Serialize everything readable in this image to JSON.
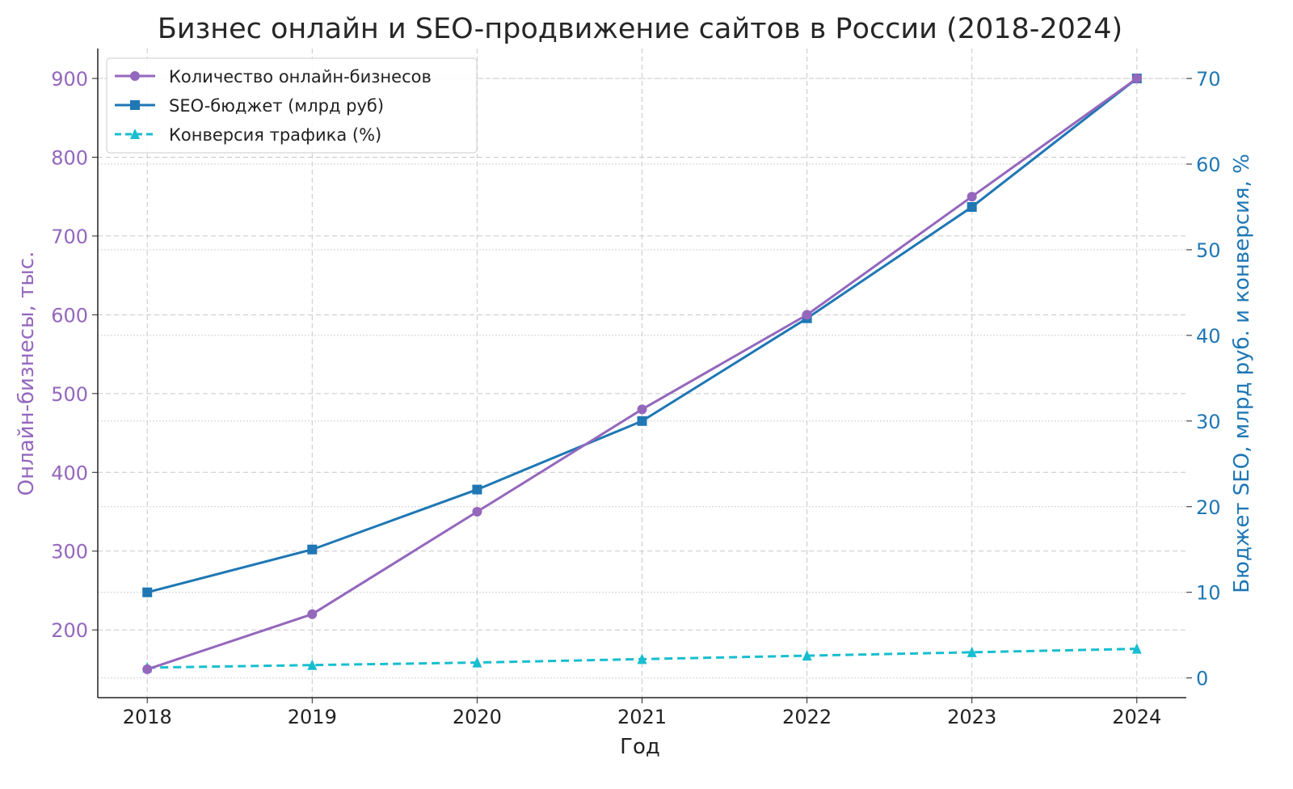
{
  "chart_data": {
    "type": "line",
    "title": "Бизнес онлайн и SEO-продвижение сайтов в России (2018-2024)",
    "xlabel": "Год",
    "ylabel_left": "Онлайн-бизнесы, тыс.",
    "ylabel_right": "Бюджет SEO, млрд руб. и конверсия, %",
    "x": [
      2018,
      2019,
      2020,
      2021,
      2022,
      2023,
      2024
    ],
    "x_ticks": [
      "2018",
      "2019",
      "2020",
      "2021",
      "2022",
      "2023",
      "2024"
    ],
    "ylim_left": [
      114,
      938
    ],
    "ylim_right": [
      -2.3,
      73.5
    ],
    "y_ticks_left": [
      "200",
      "300",
      "400",
      "500",
      "600",
      "700",
      "800",
      "900"
    ],
    "y_ticks_right": [
      "0",
      "10",
      "20",
      "30",
      "40",
      "50",
      "60",
      "70"
    ],
    "grid": true,
    "legend_position": "top-left",
    "series": [
      {
        "name": "Количество онлайн-бизнесов",
        "axis": "left",
        "marker": "circle",
        "style": "solid",
        "color": "#9467bd",
        "values": [
          150,
          220,
          350,
          480,
          600,
          750,
          900
        ]
      },
      {
        "name": "SEO-бюджет (млрд руб)",
        "axis": "right",
        "marker": "square",
        "style": "solid",
        "color": "#1f77b4",
        "values": [
          10,
          15,
          22,
          30,
          42,
          55,
          70
        ]
      },
      {
        "name": "Конверсия трафика (%)",
        "axis": "right",
        "marker": "triangle",
        "style": "dashed",
        "color": "#17becf",
        "values": [
          1.2,
          1.5,
          1.8,
          2.2,
          2.6,
          3.0,
          3.4
        ]
      }
    ],
    "colors": {
      "left_axis": "#9467bd",
      "right_axis": "#1f77b4"
    }
  }
}
